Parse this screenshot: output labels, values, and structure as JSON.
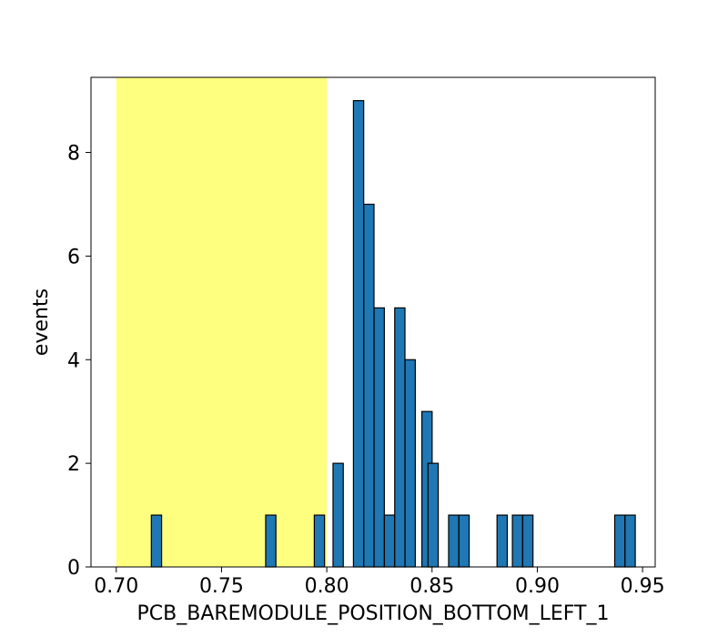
{
  "chart_data": {
    "type": "bar",
    "title": "",
    "xlabel": "PCB_BAREMODULE_POSITION_BOTTOM_LEFT_1",
    "ylabel": "events",
    "xlim": [
      0.688,
      0.956
    ],
    "ylim": [
      0,
      9.45
    ],
    "xticks": [
      0.7,
      0.75,
      0.8,
      0.85,
      0.9,
      0.95
    ],
    "xtick_labels": [
      "0.70",
      "0.75",
      "0.80",
      "0.85",
      "0.90",
      "0.95"
    ],
    "yticks": [
      0,
      2,
      4,
      6,
      8
    ],
    "ytick_labels": [
      "0",
      "2",
      "4",
      "6",
      "8"
    ],
    "bin_width": 0.00487,
    "bins": [
      {
        "x": 0.7191,
        "count": 1
      },
      {
        "x": 0.7734,
        "count": 1
      },
      {
        "x": 0.7965,
        "count": 1
      },
      {
        "x": 0.8054,
        "count": 2
      },
      {
        "x": 0.8151,
        "count": 9
      },
      {
        "x": 0.82,
        "count": 7
      },
      {
        "x": 0.8249,
        "count": 5
      },
      {
        "x": 0.8298,
        "count": 1
      },
      {
        "x": 0.8347,
        "count": 5
      },
      {
        "x": 0.8396,
        "count": 4
      },
      {
        "x": 0.8476,
        "count": 3
      },
      {
        "x": 0.8505,
        "count": 2
      },
      {
        "x": 0.8603,
        "count": 1
      },
      {
        "x": 0.8652,
        "count": 1
      },
      {
        "x": 0.8833,
        "count": 1
      },
      {
        "x": 0.8906,
        "count": 1
      },
      {
        "x": 0.8955,
        "count": 1
      },
      {
        "x": 0.9392,
        "count": 1
      },
      {
        "x": 0.9441,
        "count": 1
      }
    ],
    "highlight_region": {
      "x_start": 0.7,
      "x_end": 0.8,
      "color": "#ffff7f"
    },
    "bar_color": "#1f77b4",
    "edge_color": "#000000",
    "grid": false
  }
}
